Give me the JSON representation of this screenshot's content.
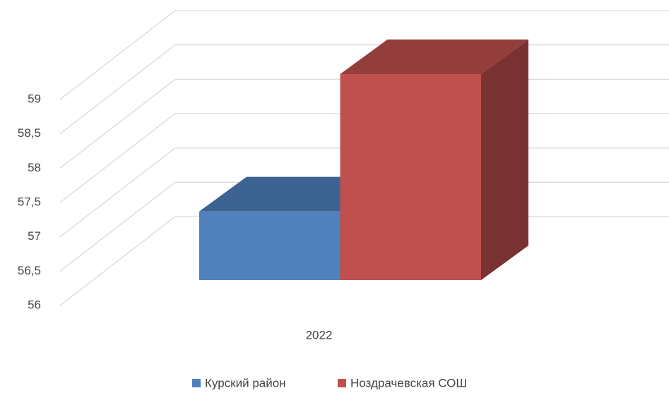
{
  "chart_data": {
    "type": "bar3d",
    "categories": [
      "2022"
    ],
    "series": [
      {
        "name": "Курский район",
        "color": "#4f81bd",
        "values": [
          57
        ]
      },
      {
        "name": "Ноздрачевская СОШ",
        "color": "#c0504d",
        "values": [
          59
        ]
      }
    ],
    "ylim": [
      56,
      59
    ],
    "yticks": [
      56,
      {
        "value": 56.5,
        "label": "56,5"
      },
      57,
      {
        "value": 57.5,
        "label": "57,5"
      },
      58,
      {
        "value": 58.5,
        "label": "58,5"
      },
      59
    ],
    "grid": true,
    "legend": "bottom"
  }
}
